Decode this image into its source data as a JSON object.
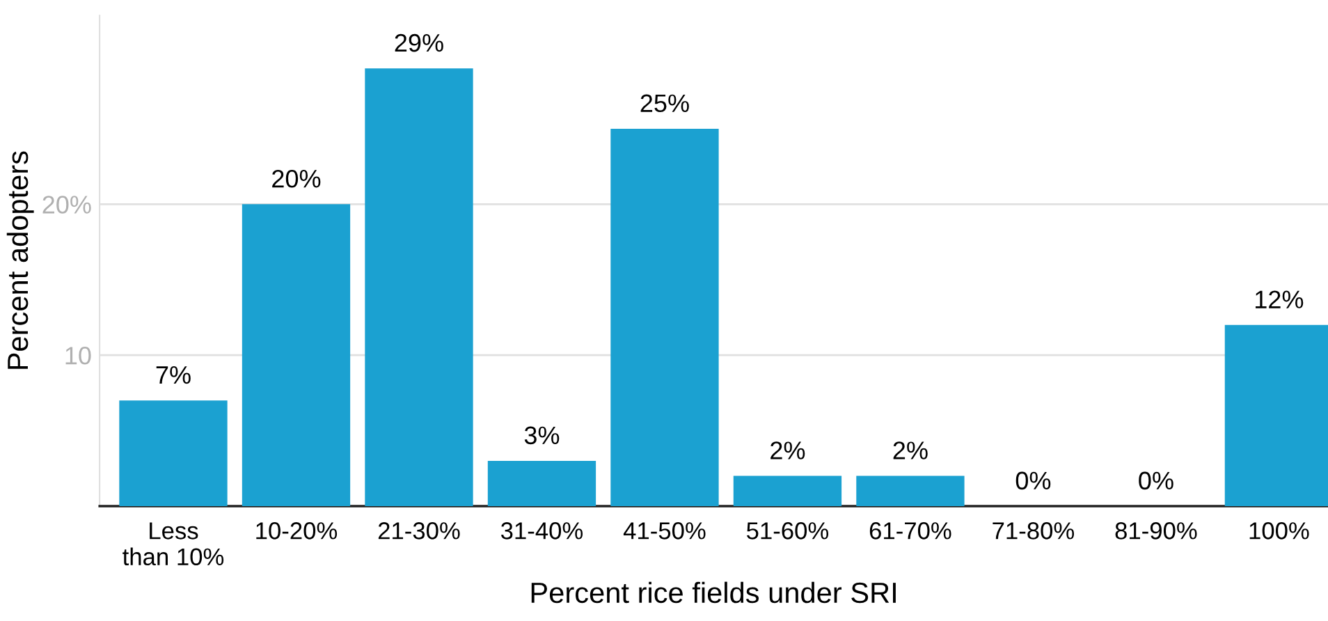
{
  "chart_data": {
    "type": "bar",
    "xlabel": "Percent rice fields under SRI",
    "ylabel": "Percent adopters",
    "categories": [
      "Less\nthan 10%",
      "10-20%",
      "21-30%",
      "31-40%",
      "41-50%",
      "51-60%",
      "61-70%",
      "71-80%",
      "81-90%",
      "100%"
    ],
    "values": [
      7,
      20,
      29,
      3,
      25,
      2,
      2,
      0,
      0,
      12
    ],
    "value_labels": [
      "7%",
      "20%",
      "29%",
      "3%",
      "25%",
      "2%",
      "2%",
      "0%",
      "0%",
      "12%"
    ],
    "color": "#1ba1d1",
    "yticks": [
      10,
      {
        "value": 20,
        "label": "20%"
      }
    ],
    "ylim": [
      0,
      32.5
    ],
    "grid": "y"
  }
}
